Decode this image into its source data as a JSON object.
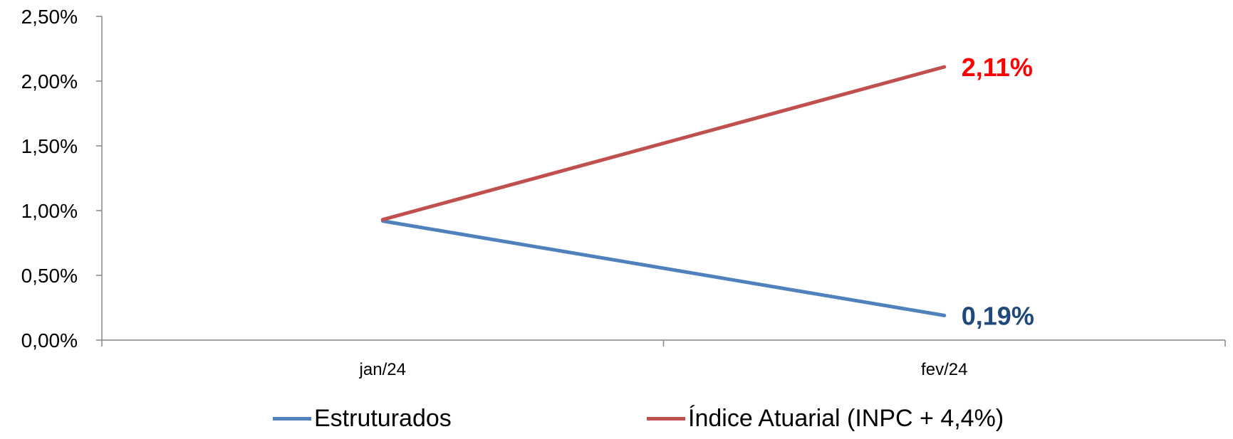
{
  "chart_data": {
    "type": "line",
    "categories": [
      "jan/24",
      "fev/24"
    ],
    "ylim": [
      0,
      2.5
    ],
    "y_ticks": [
      "0,00%",
      "0,50%",
      "1,00%",
      "1,50%",
      "2,00%",
      "2,50%"
    ],
    "grid": false,
    "legend_position": "bottom",
    "series": [
      {
        "name": "Estruturados",
        "values": [
          0.92,
          0.19
        ],
        "color": "#4F81BD",
        "end_label": "0,19%",
        "end_label_color": "#1F497D"
      },
      {
        "name": "Índice Atuarial (INPC + 4,4%)",
        "values": [
          0.93,
          2.11
        ],
        "color": "#C0504D",
        "end_label": "2,11%",
        "end_label_color": "#FF0000"
      }
    ]
  }
}
